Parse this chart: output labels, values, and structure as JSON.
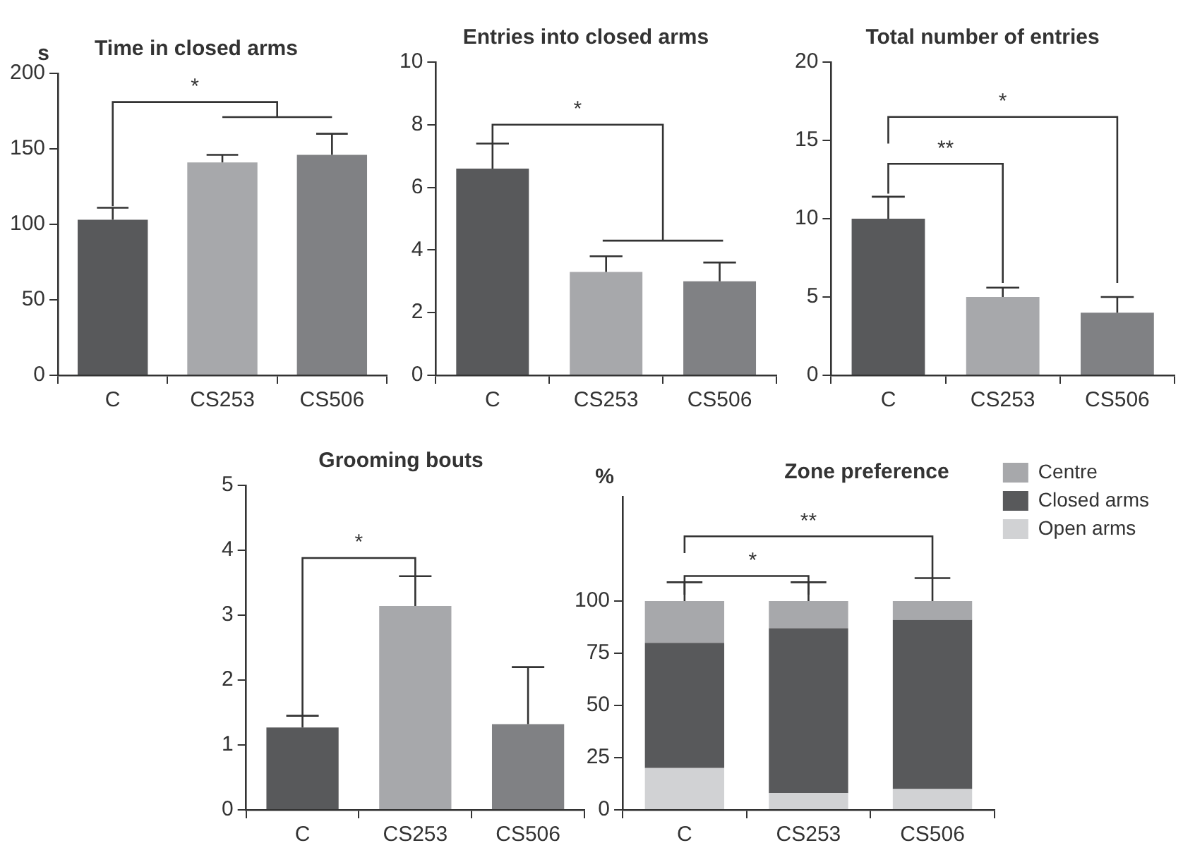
{
  "chart_data": [
    {
      "type": "bar",
      "title": "Time in closed arms",
      "ylabel": "s",
      "categories": [
        "C",
        "CS253",
        "CS506"
      ],
      "values": [
        103,
        141,
        146
      ],
      "errors": [
        [
          103,
          111
        ],
        [
          141,
          146
        ],
        [
          146,
          160
        ]
      ],
      "colors": [
        "#58595b",
        "#a7a8ab",
        "#808184"
      ],
      "ylim": [
        0,
        200
      ],
      "yticks": [
        0,
        50,
        100,
        150,
        200
      ],
      "annotations": [
        "*"
      ]
    },
    {
      "type": "bar",
      "title": "Entries into closed arms",
      "categories": [
        "C",
        "CS253",
        "CS506"
      ],
      "values": [
        6.6,
        3.3,
        3.0
      ],
      "errors": [
        [
          6.6,
          7.4
        ],
        [
          3.3,
          3.8
        ],
        [
          3.0,
          3.6
        ]
      ],
      "colors": [
        "#58595b",
        "#a7a8ab",
        "#808184"
      ],
      "ylim": [
        0,
        10
      ],
      "yticks": [
        0,
        2,
        4,
        6,
        8,
        10
      ],
      "annotations": [
        "*"
      ]
    },
    {
      "type": "bar",
      "title": "Total number of entries",
      "categories": [
        "C",
        "CS253",
        "CS506"
      ],
      "values": [
        10,
        5,
        4
      ],
      "errors": [
        [
          10,
          11.4
        ],
        [
          5,
          5.6
        ],
        [
          4,
          5
        ]
      ],
      "colors": [
        "#58595b",
        "#a7a8ab",
        "#808184"
      ],
      "ylim": [
        0,
        20
      ],
      "yticks": [
        0,
        5,
        10,
        15,
        20
      ],
      "annotations": [
        "**",
        "*"
      ]
    },
    {
      "type": "bar",
      "title": "Grooming bouts",
      "categories": [
        "C",
        "CS253",
        "CS506"
      ],
      "values": [
        1.27,
        3.14,
        1.32
      ],
      "errors": [
        [
          1.27,
          1.45
        ],
        [
          3.14,
          3.6
        ],
        [
          1.32,
          2.2
        ]
      ],
      "colors": [
        "#58595b",
        "#a7a8ab",
        "#808184"
      ],
      "ylim": [
        0,
        5
      ],
      "yticks": [
        0,
        1,
        2,
        3,
        4,
        5
      ],
      "annotations": [
        "*"
      ]
    },
    {
      "type": "bar",
      "title": "Zone preference",
      "ylabel": "%",
      "categories": [
        "C",
        "CS253",
        "CS506"
      ],
      "stacked": true,
      "legend": "right",
      "ylim": [
        0,
        150
      ],
      "yticks": [
        0,
        25,
        50,
        75,
        100
      ],
      "annotations": [
        "*",
        "**"
      ],
      "series": [
        {
          "name": "Open arms",
          "color": "#d1d2d4",
          "values": [
            20,
            8,
            10
          ]
        },
        {
          "name": "Closed arms",
          "color": "#58595b",
          "values": [
            60,
            79,
            81
          ]
        },
        {
          "name": "Centre",
          "color": "#a7a8ab",
          "values": [
            20,
            13,
            9
          ],
          "errors": [
            [
              100,
              109
            ],
            [
              100,
              109
            ],
            [
              100,
              111
            ]
          ]
        }
      ]
    }
  ]
}
